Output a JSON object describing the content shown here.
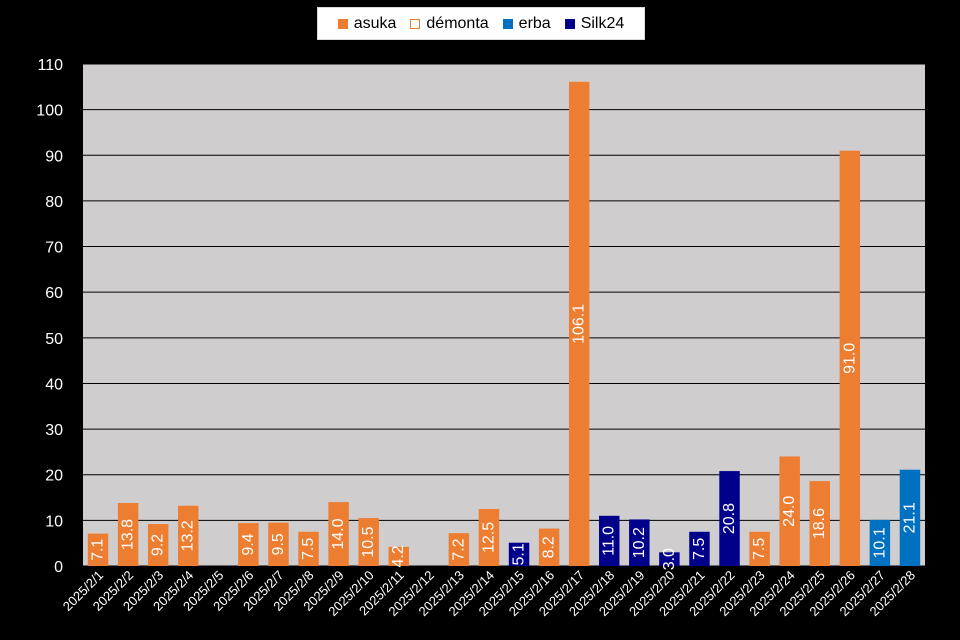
{
  "chart_data": {
    "type": "bar",
    "title": "",
    "xlabel": "",
    "ylabel": "",
    "ylim": [
      0,
      110
    ],
    "yticks": [
      0,
      10,
      20,
      30,
      40,
      50,
      60,
      70,
      80,
      90,
      100,
      110
    ],
    "grid": true,
    "legend_position": "top-center",
    "categories": [
      "2025/2/1",
      "2025/2/2",
      "2025/2/3",
      "2025/2/4",
      "2025/2/5",
      "2025/2/6",
      "2025/2/7",
      "2025/2/8",
      "2025/2/9",
      "2025/2/10",
      "2025/2/11",
      "2025/2/12",
      "2025/2/13",
      "2025/2/14",
      "2025/2/15",
      "2025/2/16",
      "2025/2/17",
      "2025/2/18",
      "2025/2/19",
      "2025/2/20",
      "2025/2/21",
      "2025/2/22",
      "2025/2/23",
      "2025/2/24",
      "2025/2/25",
      "2025/2/26",
      "2025/2/27",
      "2025/2/28"
    ],
    "series": [
      {
        "name": "asuka",
        "color": "#ed7d31",
        "style": "filled",
        "values": [
          7.1,
          13.8,
          9.2,
          13.2,
          null,
          9.4,
          9.5,
          7.5,
          14.0,
          10.5,
          4.2,
          null,
          7.2,
          12.5,
          null,
          8.2,
          106.1,
          null,
          null,
          null,
          null,
          null,
          7.5,
          24.0,
          18.6,
          91.0,
          null,
          null
        ]
      },
      {
        "name": "démonta",
        "color": "#ed7d31",
        "style": "outline",
        "values": [
          null,
          null,
          null,
          null,
          null,
          null,
          null,
          null,
          null,
          null,
          null,
          null,
          null,
          null,
          null,
          null,
          null,
          null,
          null,
          null,
          null,
          null,
          null,
          null,
          null,
          null,
          null,
          null
        ]
      },
      {
        "name": "erba",
        "color": "#0070c0",
        "style": "filled",
        "values": [
          null,
          null,
          null,
          null,
          null,
          null,
          null,
          null,
          null,
          null,
          null,
          null,
          null,
          null,
          null,
          null,
          null,
          null,
          null,
          null,
          null,
          null,
          null,
          null,
          null,
          null,
          10.1,
          21.1
        ]
      },
      {
        "name": "Silk24",
        "color": "#00008b",
        "style": "filled",
        "values": [
          null,
          null,
          null,
          null,
          null,
          null,
          null,
          null,
          null,
          null,
          null,
          null,
          null,
          null,
          5.1,
          null,
          null,
          11.0,
          10.2,
          3.0,
          7.5,
          20.8,
          null,
          null,
          null,
          null,
          null,
          null
        ]
      }
    ]
  }
}
